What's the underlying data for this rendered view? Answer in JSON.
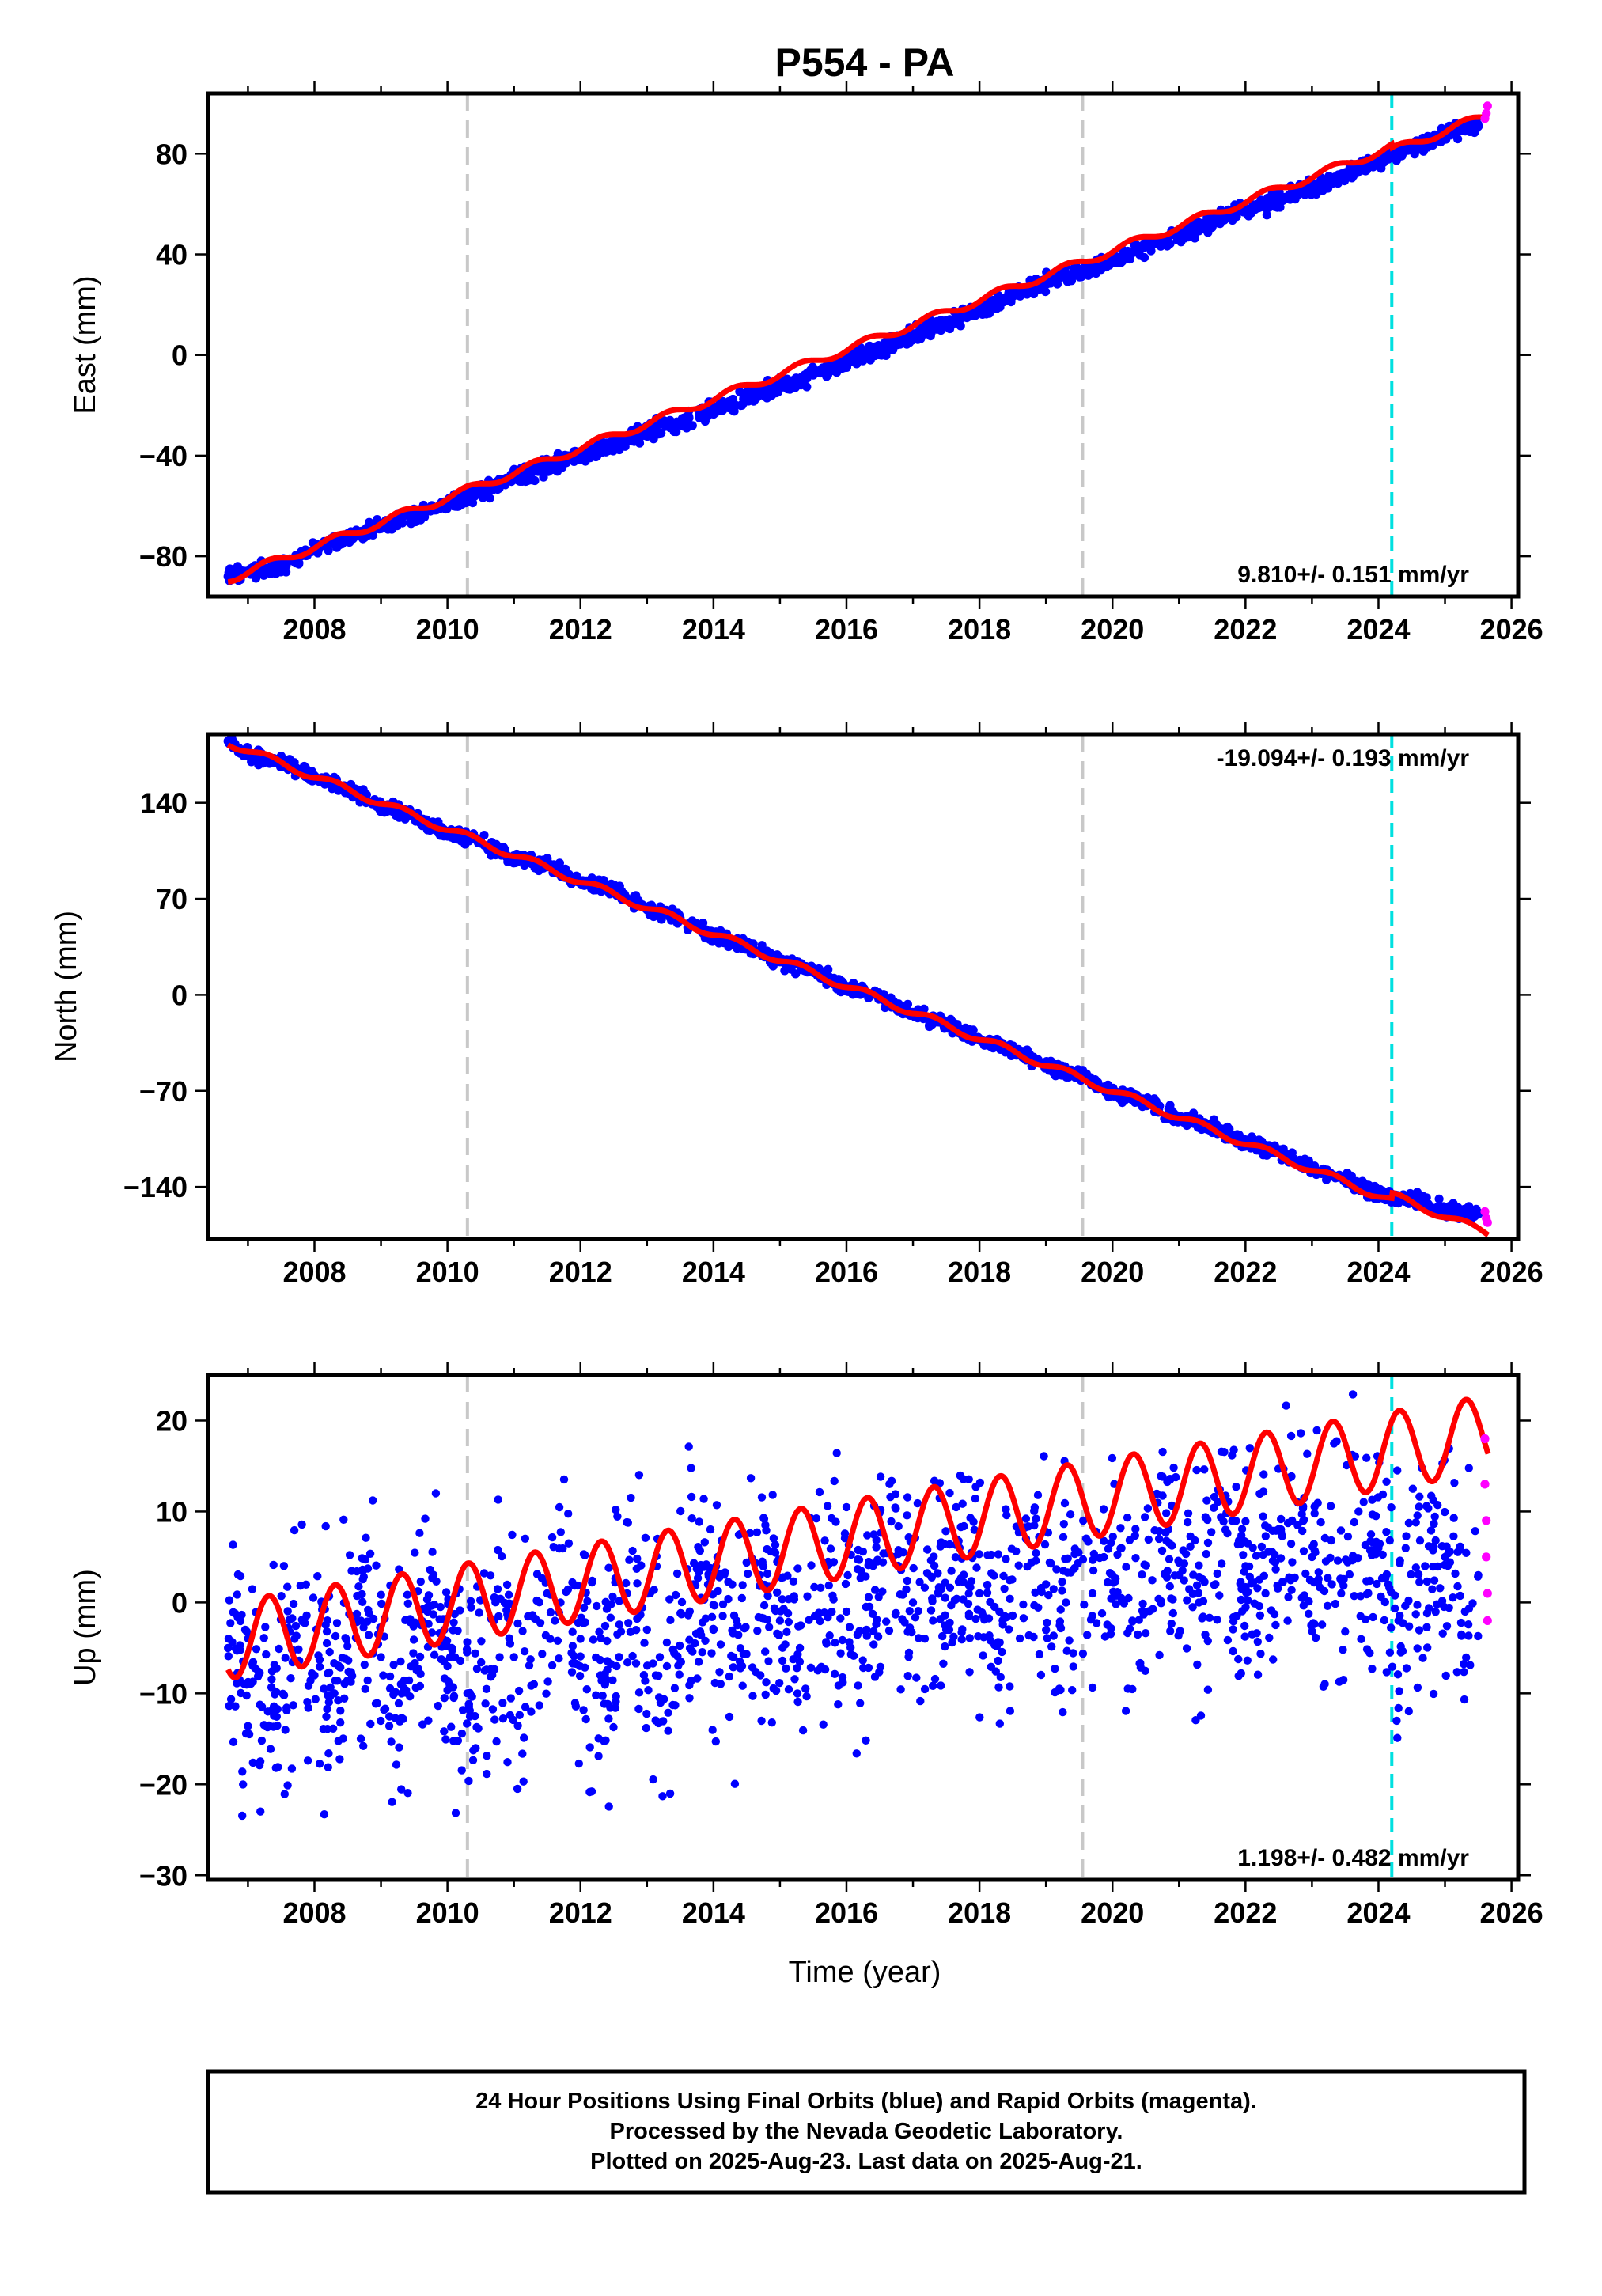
{
  "title": "P554 - PA",
  "colors": {
    "final_orbits": "#0000ff",
    "rapid_orbits": "#ff00ff",
    "model": "#ff0000",
    "event_gray": "#c8c8c8",
    "event_cyan": "#00e0e0"
  },
  "chart_data": [
    {
      "type": "scatter",
      "component": "east",
      "ylabel": "East (mm)",
      "xlabel": "",
      "xlim": [
        2006.4,
        2026.1
      ],
      "ylim": [
        -96,
        104
      ],
      "xticks": [
        2008,
        2010,
        2012,
        2014,
        2016,
        2018,
        2020,
        2022,
        2024,
        2026
      ],
      "yticks": [
        -80,
        -40,
        0,
        40,
        80
      ],
      "rate_text": "9.810+/- 0.151 mm/yr",
      "rate_position": "bottom-right",
      "events_gray": [
        2010.3,
        2019.55
      ],
      "events_cyan": [
        2024.2
      ],
      "series": [
        {
          "name": "Final Orbits",
          "x": [
            2006.7,
            2007.0,
            2007.5,
            2008.0,
            2008.5,
            2009.0,
            2009.5,
            2010.0,
            2010.5,
            2011.0,
            2011.5,
            2012.0,
            2012.5,
            2013.0,
            2013.5,
            2014.0,
            2014.5,
            2015.0,
            2015.5,
            2016.0,
            2016.5,
            2017.0,
            2017.5,
            2018.0,
            2018.5,
            2019.0,
            2019.5,
            2020.0,
            2020.5,
            2021.0,
            2021.5,
            2022.0,
            2022.5,
            2023.0,
            2023.5,
            2024.0,
            2024.5,
            2025.0,
            2025.5
          ],
          "values": [
            -88,
            -86,
            -84,
            -77,
            -73,
            -68,
            -64,
            -59,
            -54,
            -49,
            -44,
            -39,
            -36,
            -30,
            -27,
            -21,
            -18,
            -12,
            -8,
            -2,
            2,
            8,
            13,
            18,
            24,
            29,
            33,
            38,
            43,
            48,
            53,
            58,
            61,
            67,
            71,
            78,
            82,
            88,
            91
          ]
        },
        {
          "name": "Rapid Orbits",
          "x": [
            2025.6,
            2025.62,
            2025.64
          ],
          "values": [
            94,
            96,
            99
          ]
        }
      ],
      "model": {
        "name": "Model",
        "start": [
          2006.7,
          -89
        ],
        "rate": 9.81,
        "annual_amplitude": 1.6,
        "offsets": [
          [
            2024.2,
            -1.5
          ]
        ]
      }
    },
    {
      "type": "scatter",
      "component": "north",
      "ylabel": "North (mm)",
      "xlabel": "",
      "xlim": [
        2006.4,
        2026.1
      ],
      "ylim": [
        -178,
        190
      ],
      "xticks": [
        2008,
        2010,
        2012,
        2014,
        2016,
        2018,
        2020,
        2022,
        2024,
        2026
      ],
      "yticks": [
        -140,
        -70,
        0,
        70,
        140
      ],
      "rate_text": "-19.094+/- 0.193 mm/yr",
      "rate_position": "top-right",
      "events_gray": [
        2010.3,
        2019.55
      ],
      "events_cyan": [
        2024.2
      ],
      "series": [
        {
          "name": "Final Orbits",
          "x": [
            2006.7,
            2007.0,
            2007.5,
            2008.0,
            2008.5,
            2009.0,
            2009.5,
            2010.0,
            2010.5,
            2011.0,
            2011.5,
            2012.0,
            2012.5,
            2013.0,
            2013.5,
            2014.0,
            2014.5,
            2015.0,
            2015.5,
            2016.0,
            2016.5,
            2017.0,
            2017.5,
            2018.0,
            2018.5,
            2019.0,
            2019.5,
            2020.0,
            2020.5,
            2021.0,
            2021.5,
            2022.0,
            2022.5,
            2023.0,
            2023.5,
            2024.0,
            2024.5,
            2025.0,
            2025.5
          ],
          "values": [
            185,
            176,
            170,
            158,
            150,
            138,
            130,
            118,
            112,
            100,
            94,
            82,
            76,
            62,
            56,
            43,
            36,
            24,
            18,
            5,
            -2,
            -14,
            -20,
            -33,
            -40,
            -52,
            -58,
            -71,
            -78,
            -90,
            -96,
            -108,
            -114,
            -127,
            -134,
            -146,
            -148,
            -157,
            -160
          ]
        },
        {
          "name": "Rapid Orbits",
          "x": [
            2025.6,
            2025.62,
            2025.64
          ],
          "values": [
            -158,
            -163,
            -166
          ]
        }
      ],
      "model": {
        "name": "Model",
        "start": [
          2006.7,
          184
        ],
        "rate": -19.094,
        "annual_amplitude": 2.5,
        "offsets": [
          [
            2024.2,
            4.0
          ]
        ]
      }
    },
    {
      "type": "scatter",
      "component": "up",
      "ylabel": "Up (mm)",
      "xlabel": "Time (year)",
      "xlim": [
        2006.4,
        2026.1
      ],
      "ylim": [
        -30.5,
        25
      ],
      "xticks": [
        2008,
        2010,
        2012,
        2014,
        2016,
        2018,
        2020,
        2022,
        2024,
        2026
      ],
      "yticks": [
        -30,
        -20,
        -10,
        0,
        10,
        20
      ],
      "rate_text": "1.198+/- 0.482 mm/yr",
      "rate_position": "bottom-right",
      "events_gray": [
        2010.3,
        2019.55
      ],
      "events_cyan": [
        2024.2
      ],
      "series": [
        {
          "name": "Final Orbits",
          "x": [
            2006.7,
            2007.0,
            2007.3,
            2007.7,
            2008.0,
            2008.3,
            2008.7,
            2009.0,
            2009.3,
            2009.7,
            2010.0,
            2010.3,
            2010.7,
            2011.0,
            2011.3,
            2011.7,
            2012.0,
            2012.3,
            2012.7,
            2013.0,
            2013.3,
            2013.7,
            2014.0,
            2014.3,
            2014.7,
            2015.0,
            2015.3,
            2015.7,
            2016.0,
            2016.3,
            2016.7,
            2017.0,
            2017.3,
            2017.7,
            2018.0,
            2018.3,
            2018.7,
            2019.0,
            2019.3,
            2019.7,
            2020.0,
            2020.3,
            2020.7,
            2021.0,
            2021.3,
            2021.7,
            2022.0,
            2022.3,
            2022.7,
            2023.0,
            2023.3,
            2023.7,
            2024.0,
            2024.3,
            2024.7,
            2025.0,
            2025.3,
            2025.5
          ],
          "values": [
            -5,
            -9,
            -12,
            -4,
            -8,
            -10,
            -2,
            -6,
            -9,
            -1,
            -7,
            -10,
            -2,
            -6,
            -9,
            0,
            -4,
            -8,
            1,
            -3,
            -7,
            2,
            -3,
            -6,
            3,
            -2,
            -5,
            4,
            -1,
            -3,
            5,
            0,
            -2,
            6,
            1,
            -1,
            7,
            2,
            0,
            1,
            3,
            -2,
            7,
            3,
            0,
            8,
            4,
            1,
            9,
            5,
            2,
            10,
            6,
            -2,
            4,
            5,
            -1,
            3
          ]
        },
        {
          "name": "Rapid Orbits",
          "x": [
            2025.6,
            2025.6,
            2025.62,
            2025.62,
            2025.64,
            2025.64
          ],
          "values": [
            18,
            13,
            9,
            5,
            1,
            -2
          ]
        }
      ],
      "model": {
        "name": "Model",
        "start": [
          2006.7,
          -4.2
        ],
        "rate": 1.198,
        "annual_amplitude": 4.2,
        "offsets": []
      }
    }
  ],
  "footer": {
    "line1": "24 Hour Positions Using Final Orbits (blue) and Rapid Orbits (magenta).",
    "line2": "Processed by the Nevada Geodetic Laboratory.",
    "line3": "Plotted on 2025-Aug-23. Last data on 2025-Aug-21."
  }
}
